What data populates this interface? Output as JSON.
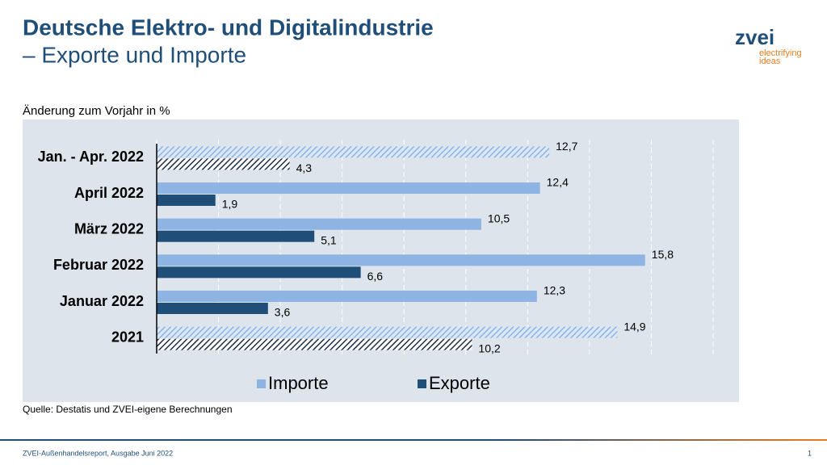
{
  "header": {
    "title": "Deutsche Elektro- und Digitalindustrie",
    "subtitle": "– Exporte und Importe"
  },
  "logo": {
    "name": "zvei",
    "tagline_1": "electrifying",
    "tagline_2": "ideas"
  },
  "chart_data": {
    "type": "hbar",
    "subtitle": "Änderung zum Vorjahr in %",
    "categories": [
      "Jan. - Apr. 2022",
      "April 2022",
      "März 2022",
      "Februar 2022",
      "Januar 2022",
      "2021"
    ],
    "hatched": [
      true,
      false,
      false,
      false,
      false,
      true
    ],
    "series": [
      {
        "name": "Importe",
        "color": "#8db4e2",
        "values": [
          12.7,
          12.4,
          10.5,
          15.8,
          12.3,
          14.9
        ],
        "value_labels": [
          "12,7",
          "12,4",
          "10,5",
          "15,8",
          "12,3",
          "14,9"
        ]
      },
      {
        "name": "Exporte",
        "color": "#1f4e79",
        "values": [
          4.3,
          1.9,
          5.1,
          6.6,
          3.6,
          10.2
        ],
        "value_labels": [
          "4,3",
          "1,9",
          "5,1",
          "6,6",
          "3,6",
          "10,2"
        ]
      }
    ],
    "xlim": [
      0,
      18
    ],
    "xticks": [
      0,
      2,
      4,
      6,
      8,
      10,
      12,
      14,
      16,
      18
    ],
    "grid": true,
    "source": "Quelle: Destatis und ZVEI-eigene Berechnungen"
  },
  "footer": {
    "text": "ZVEI-Außenhandelsreport, Ausgabe Juni 2022",
    "page": "1"
  }
}
